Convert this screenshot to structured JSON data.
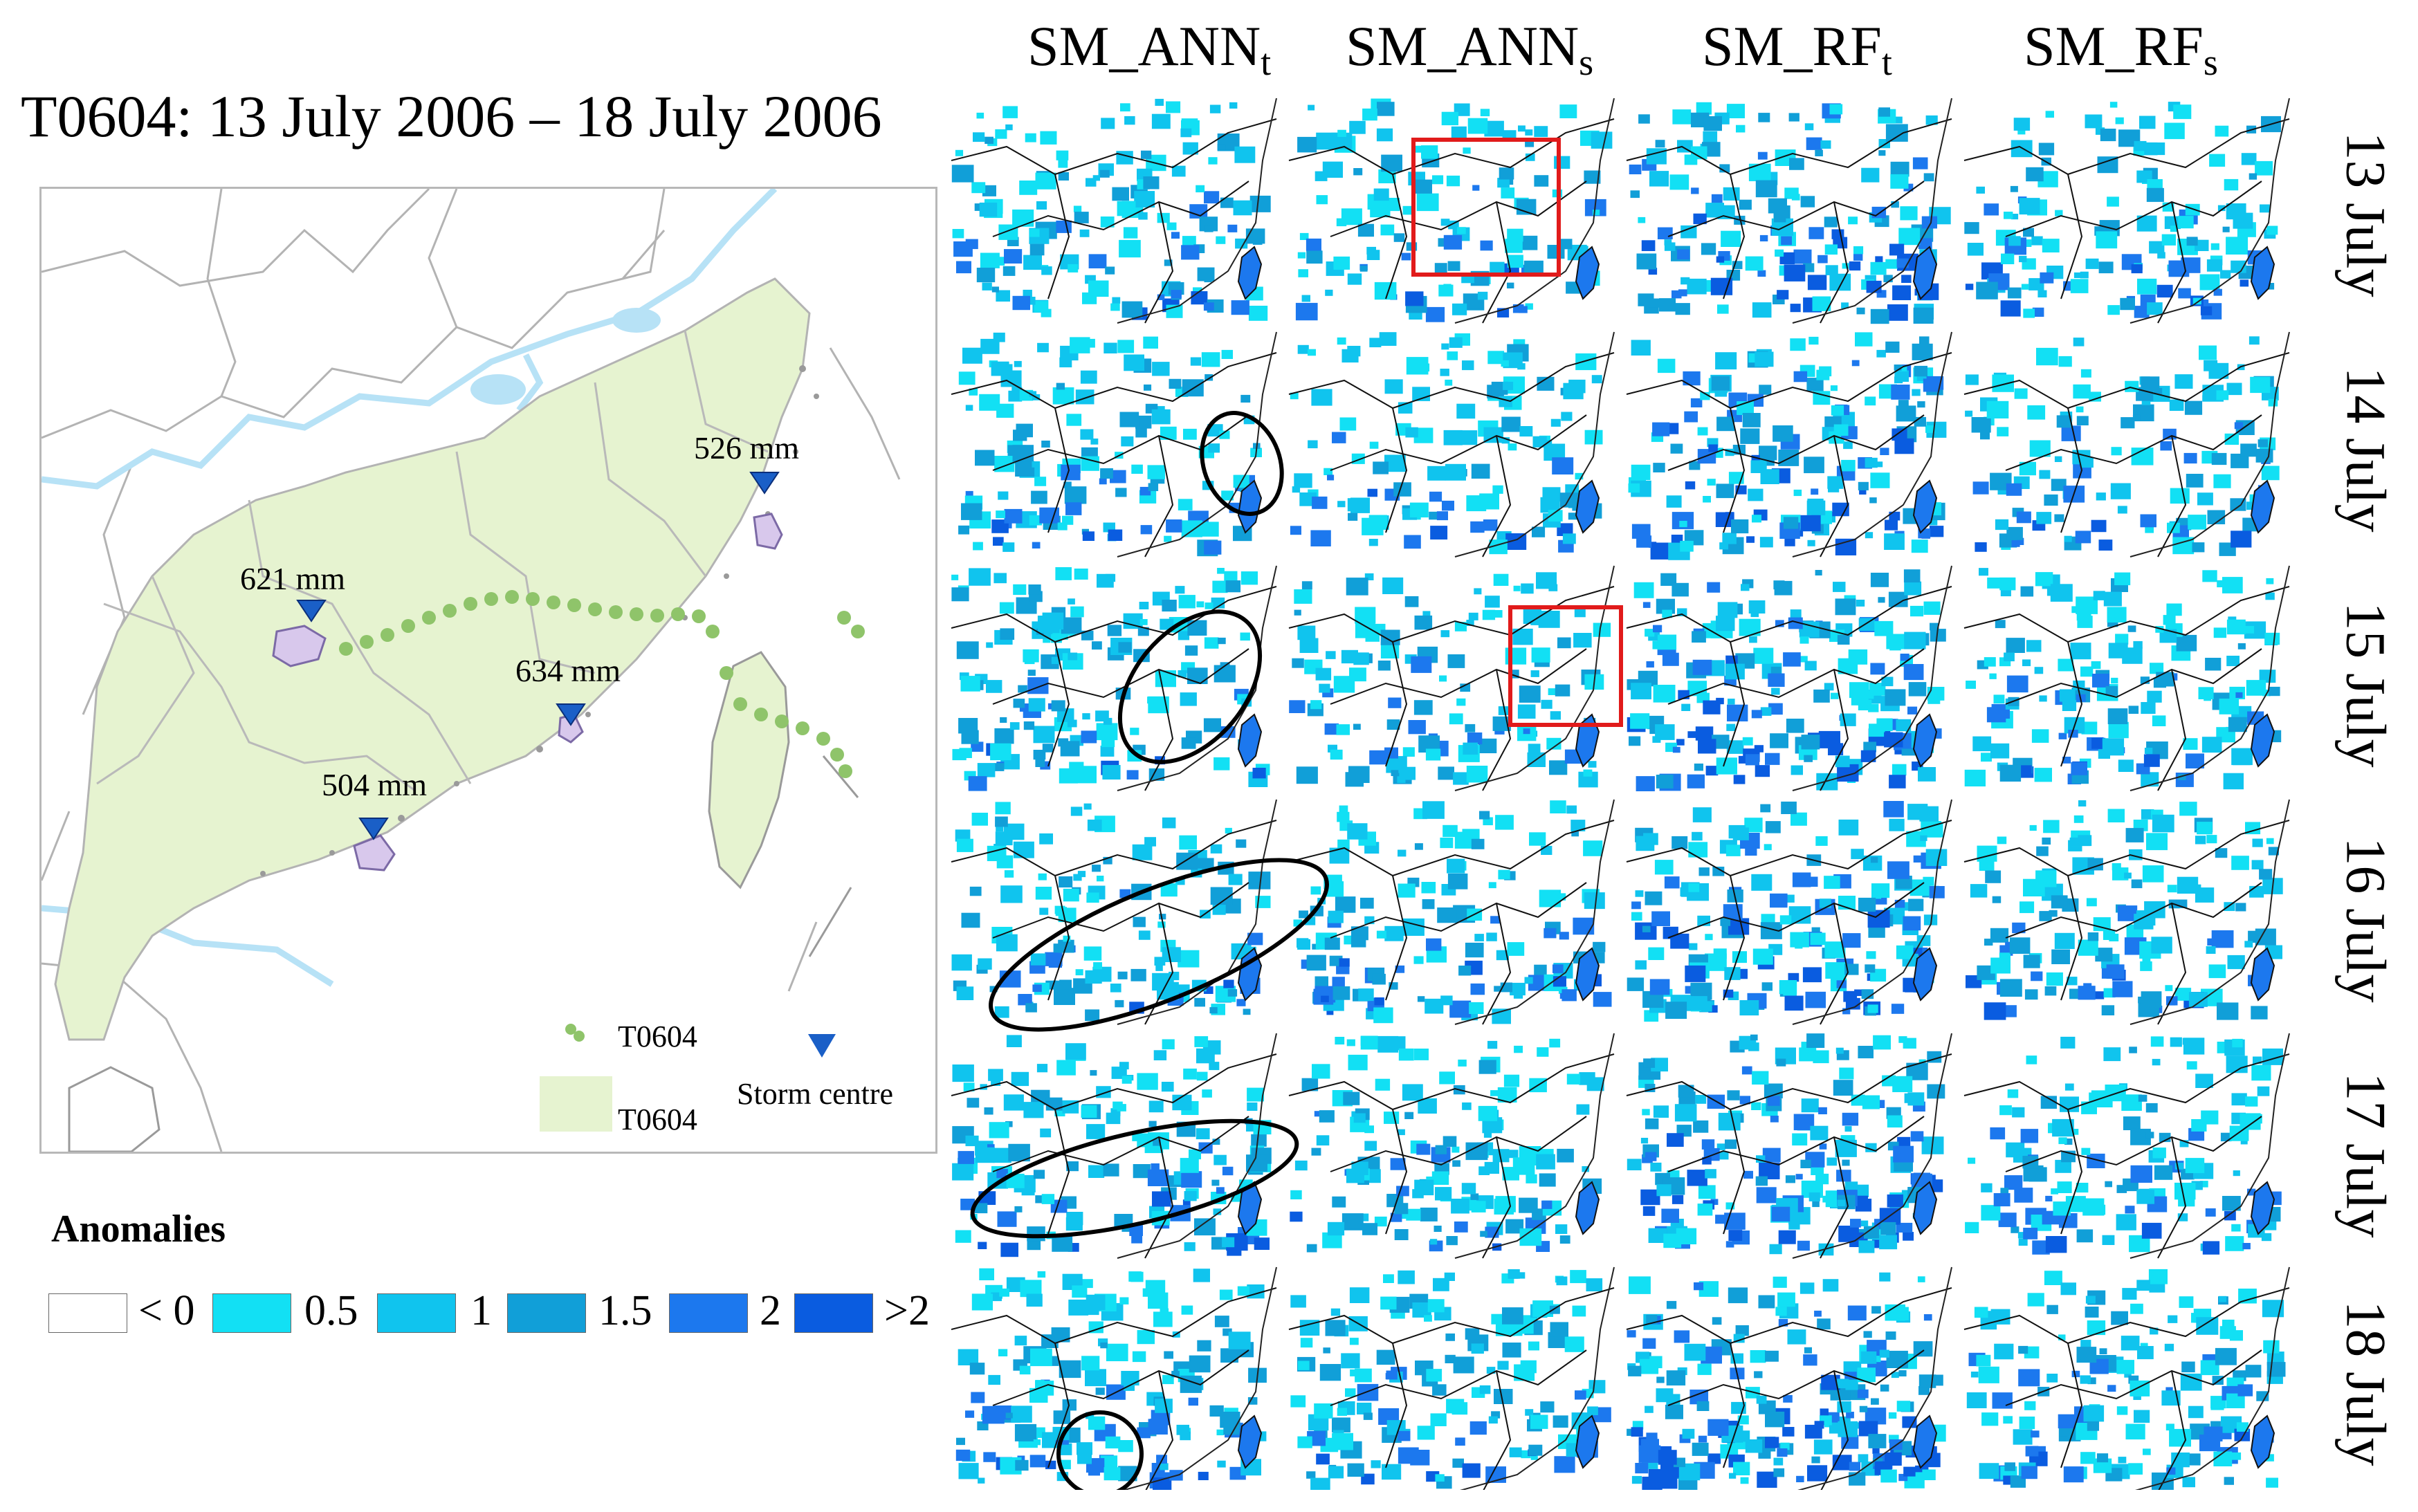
{
  "figure": {
    "title": "T0604: 13 July 2006 – 18 July 2006",
    "columns": [
      "SM_ANN",
      "SM_ANN",
      "SM_RF",
      "SM_RF"
    ],
    "column_subscripts": [
      "t",
      "s",
      "t",
      "s"
    ],
    "rows": [
      "13 July",
      "14 July",
      "15 July",
      "16 July",
      "17 July",
      "18 July"
    ]
  },
  "overview_map": {
    "storm_centres": [
      {
        "name": "526 mm"
      },
      {
        "name": "621 mm"
      },
      {
        "name": "634 mm"
      },
      {
        "name": "504 mm"
      }
    ],
    "legend": {
      "track_label": "T0604",
      "area_label": "T0604",
      "storm_label": "Storm centre"
    }
  },
  "anomalies_legend": {
    "title": "Anomalies",
    "classes": [
      {
        "label": "< 0",
        "color": "#ffffff"
      },
      {
        "label": "0.5",
        "color": "#12e0f4"
      },
      {
        "label": "1",
        "color": "#10c4ee"
      },
      {
        "label": "1.5",
        "color": "#119fd8"
      },
      {
        "label": "2",
        "color": "#1c78ee"
      },
      {
        "label": ">2",
        "color": "#0a5ce0"
      }
    ]
  },
  "colors": {
    "land_fill": "#e6f3d0",
    "water": "#b7e2f6",
    "track": "#8fc46a",
    "storm_marker": "#1a5fc7",
    "storm_area": "#d8c8ec",
    "highlight_box": "#e11b1b",
    "highlight_ellipse": "#000000"
  }
}
